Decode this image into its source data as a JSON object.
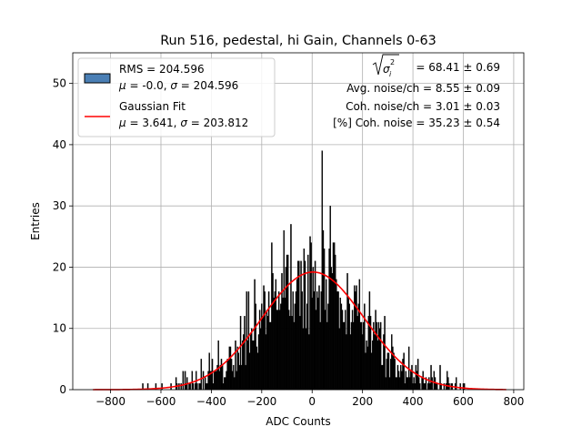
{
  "chart_data": {
    "type": "bar",
    "title": "Run 516, pedestal, hi Gain, Channels 0-63",
    "xlabel": "ADC Counts",
    "ylabel": "Entries",
    "xlim": [
      -950,
      840
    ],
    "ylim": [
      0,
      55
    ],
    "xticks": [
      -800,
      -600,
      -400,
      -200,
      0,
      200,
      400,
      600,
      800
    ],
    "xtick_labels": [
      "−800",
      "−600",
      "−400",
      "−200",
      "0",
      "200",
      "400",
      "600",
      "800"
    ],
    "yticks": [
      0,
      10,
      20,
      30,
      40,
      50
    ],
    "ytick_labels": [
      "0",
      "10",
      "20",
      "30",
      "40",
      "50"
    ],
    "grid": true,
    "legend_position": "top-left",
    "histogram": {
      "bin_width": 4,
      "x_start": -870,
      "x_end": 770,
      "mean": -0.0,
      "sigma": 204.596,
      "peak_entries": 39,
      "peak_x": 40,
      "color": "#000000",
      "legend_patch_color": "#4a7fb5"
    },
    "fit": {
      "mean": 3.641,
      "sigma": 203.812,
      "amplitude": 19.2,
      "color": "#ff0000"
    },
    "legend": [
      {
        "key": "hist",
        "line1": "RMS = 204.596",
        "line2_parts": [
          "μ",
          " = -0.0, ",
          "σ",
          " = 204.596"
        ]
      },
      {
        "key": "fit",
        "line1": "Gaussian Fit",
        "line2_parts": [
          "μ",
          " = 3.641, ",
          "σ",
          " = 203.812"
        ]
      }
    ],
    "annotations": [
      {
        "sym": "σ",
        "sub": "i",
        "sup": "2",
        "text": " = 68.41 ± 0.69"
      },
      {
        "text": "Avg. noise/ch = 8.55 ± 0.09"
      },
      {
        "text": "Coh. noise/ch = 3.01 ± 0.03"
      },
      {
        "text": "[%] Coh. noise = 35.23 ± 0.54"
      }
    ]
  }
}
